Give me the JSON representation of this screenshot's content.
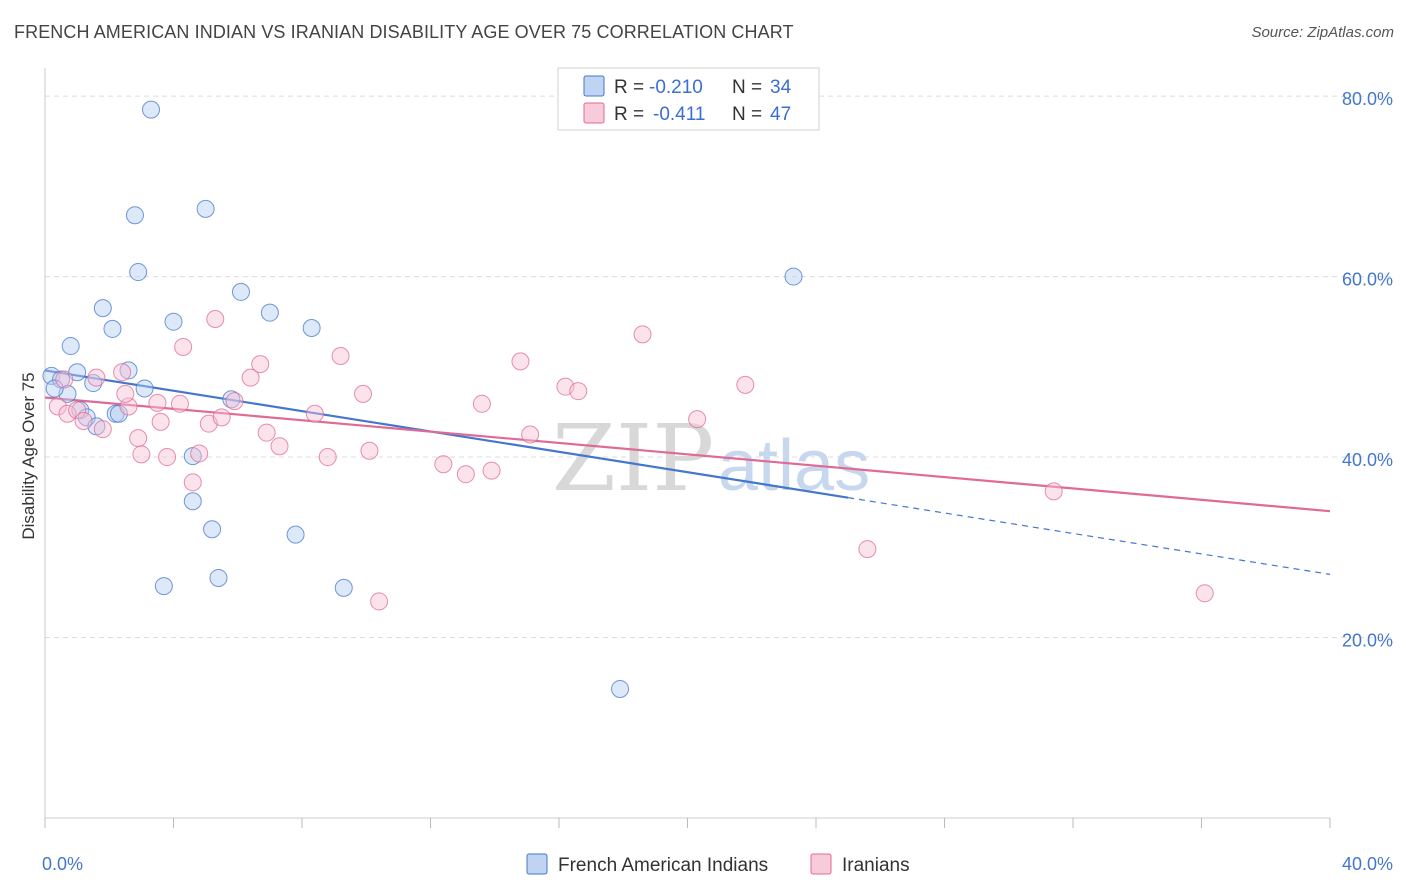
{
  "title": "FRENCH AMERICAN INDIAN VS IRANIAN DISABILITY AGE OVER 75 CORRELATION CHART",
  "source": "Source: ZipAtlas.com",
  "watermark": {
    "zip": "ZIP",
    "atlas": "atlas"
  },
  "legend": {
    "r_label": "R =",
    "n_label": "N =",
    "rows": [
      {
        "r": "-0.210",
        "n": "34",
        "color": "#9fc0ee"
      },
      {
        "r": "-0.411",
        "n": "47",
        "color": "#f4b3c8"
      }
    ]
  },
  "chart_data": {
    "type": "scatter",
    "title": "FRENCH AMERICAN INDIAN VS IRANIAN DISABILITY AGE OVER 75 CORRELATION CHART",
    "xlabel": "",
    "ylabel": "Disability Age Over 75",
    "xlim": [
      0,
      40
    ],
    "ylim": [
      0,
      84
    ],
    "x_tick_labels": [
      "0.0%",
      "40.0%"
    ],
    "y_ticks": [
      20,
      40,
      60,
      80
    ],
    "y_tick_labels": [
      "20.0%",
      "40.0%",
      "60.0%",
      "80.0%"
    ],
    "grid": true,
    "legend_position": "top-center",
    "series": [
      {
        "name": "French American Indians",
        "color": "#4477cc",
        "fill": "#b3cdf0",
        "points": [
          [
            3.3,
            78.5
          ],
          [
            2.8,
            66.8
          ],
          [
            5.0,
            67.5
          ],
          [
            2.9,
            60.5
          ],
          [
            6.1,
            58.3
          ],
          [
            1.8,
            56.5
          ],
          [
            4.0,
            55.0
          ],
          [
            7.0,
            56.0
          ],
          [
            2.1,
            54.2
          ],
          [
            8.3,
            54.3
          ],
          [
            0.8,
            52.3
          ],
          [
            2.6,
            49.6
          ],
          [
            1.0,
            49.4
          ],
          [
            0.2,
            49.0
          ],
          [
            0.5,
            48.6
          ],
          [
            1.5,
            48.2
          ],
          [
            3.1,
            47.6
          ],
          [
            0.7,
            47.0
          ],
          [
            5.8,
            46.4
          ],
          [
            1.1,
            45.2
          ],
          [
            1.3,
            44.4
          ],
          [
            2.2,
            44.8
          ],
          [
            2.3,
            44.8
          ],
          [
            1.6,
            43.4
          ],
          [
            4.6,
            40.1
          ],
          [
            4.6,
            35.1
          ],
          [
            5.2,
            32.0
          ],
          [
            7.8,
            31.4
          ],
          [
            3.7,
            25.7
          ],
          [
            5.4,
            26.6
          ],
          [
            9.3,
            25.5
          ],
          [
            23.3,
            60.0
          ],
          [
            17.9,
            14.3
          ],
          [
            0.3,
            47.6
          ]
        ]
      },
      {
        "name": "Iranians",
        "color": "#e06a95",
        "fill": "#f7c2d4",
        "points": [
          [
            0.4,
            45.6
          ],
          [
            0.7,
            44.8
          ],
          [
            1.0,
            45.2
          ],
          [
            1.6,
            48.8
          ],
          [
            1.8,
            43.1
          ],
          [
            2.4,
            49.4
          ],
          [
            2.6,
            45.6
          ],
          [
            2.5,
            47.0
          ],
          [
            2.9,
            42.1
          ],
          [
            3.0,
            40.3
          ],
          [
            3.5,
            46.0
          ],
          [
            3.6,
            43.9
          ],
          [
            3.8,
            40.0
          ],
          [
            4.2,
            45.9
          ],
          [
            4.3,
            52.2
          ],
          [
            4.6,
            37.2
          ],
          [
            4.8,
            40.4
          ],
          [
            5.1,
            43.7
          ],
          [
            5.3,
            55.3
          ],
          [
            5.5,
            44.4
          ],
          [
            5.9,
            46.2
          ],
          [
            6.4,
            48.8
          ],
          [
            6.7,
            50.3
          ],
          [
            6.9,
            42.7
          ],
          [
            7.3,
            41.2
          ],
          [
            8.4,
            44.8
          ],
          [
            8.8,
            40.0
          ],
          [
            9.2,
            51.2
          ],
          [
            9.9,
            47.0
          ],
          [
            10.1,
            40.7
          ],
          [
            10.4,
            24.0
          ],
          [
            12.4,
            39.2
          ],
          [
            13.1,
            38.1
          ],
          [
            13.6,
            45.9
          ],
          [
            13.9,
            38.5
          ],
          [
            14.8,
            50.6
          ],
          [
            15.1,
            42.5
          ],
          [
            16.2,
            47.8
          ],
          [
            16.6,
            47.3
          ],
          [
            18.6,
            53.6
          ],
          [
            20.3,
            44.2
          ],
          [
            21.8,
            48.0
          ],
          [
            25.6,
            29.8
          ],
          [
            31.4,
            36.2
          ],
          [
            36.1,
            24.9
          ],
          [
            0.6,
            48.6
          ],
          [
            1.2,
            44.0
          ]
        ]
      }
    ],
    "trend_lines": [
      {
        "series": "French American Indians",
        "x0": 0.0,
        "y0": 49.6,
        "x1": 25.0,
        "y1": 35.5,
        "dashed_to": [
          40.0,
          27.0
        ]
      },
      {
        "series": "Iranians",
        "x0": 0.0,
        "y0": 46.6,
        "x1": 40.0,
        "y1": 34.0
      }
    ]
  }
}
